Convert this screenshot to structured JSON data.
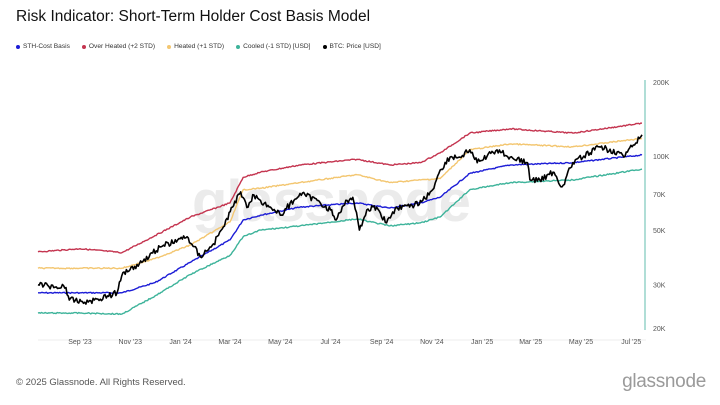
{
  "title": "Risk Indicator: Short-Term Holder Cost Basis Model",
  "footer": "© 2025 Glassnode. All Rights Reserved.",
  "logo": "glassnode",
  "watermark": "glassnode",
  "chart_data": {
    "type": "line",
    "title": "Risk Indicator: Short-Term Holder Cost Basis Model",
    "xlabel": "",
    "ylabel": "",
    "y_scale": "log",
    "ylim": [
      20000,
      200000
    ],
    "y_ticks": [
      {
        "value": 20000,
        "label": "20K"
      },
      {
        "value": 30000,
        "label": "30K"
      },
      {
        "value": 50000,
        "label": "50K"
      },
      {
        "value": 70000,
        "label": "70K"
      },
      {
        "value": 100000,
        "label": "100K"
      },
      {
        "value": 200000,
        "label": "200K"
      }
    ],
    "x_ticks": [
      {
        "date": "2023-09-01",
        "label": "Sep '23"
      },
      {
        "date": "2023-11-01",
        "label": "Nov '23"
      },
      {
        "date": "2024-01-01",
        "label": "Jan '24"
      },
      {
        "date": "2024-03-01",
        "label": "Mar '24"
      },
      {
        "date": "2024-05-01",
        "label": "May '24"
      },
      {
        "date": "2024-07-01",
        "label": "Jul '24"
      },
      {
        "date": "2024-09-01",
        "label": "Sep '24"
      },
      {
        "date": "2024-11-01",
        "label": "Nov '24"
      },
      {
        "date": "2025-01-01",
        "label": "Jan '25"
      },
      {
        "date": "2025-03-01",
        "label": "Mar '25"
      },
      {
        "date": "2025-05-01",
        "label": "May '25"
      },
      {
        "date": "2025-07-01",
        "label": "Jul '25"
      }
    ],
    "xlim": [
      "2023-07-12",
      "2025-07-14"
    ],
    "legend_position": "top-left",
    "grid": false,
    "band_dates": [
      "2023-07-12",
      "2023-09-01",
      "2023-10-22",
      "2023-12-01",
      "2024-01-13",
      "2024-03-01",
      "2024-03-17",
      "2024-04-07",
      "2024-05-25",
      "2024-08-02",
      "2024-09-11",
      "2024-10-18",
      "2024-11-11",
      "2024-12-17",
      "2025-02-04",
      "2025-04-21",
      "2025-07-14"
    ],
    "series": [
      {
        "name": "STH-Cost Basis",
        "color": "#1c1cd6",
        "values": [
          27800,
          27800,
          27800,
          30600,
          37000,
          45600,
          55000,
          57500,
          62000,
          64500,
          61500,
          64500,
          68000,
          85000,
          92000,
          94000,
          101000
        ]
      },
      {
        "name": "Over Heated (+2 STD)",
        "color": "#c4344f",
        "values": [
          40800,
          42000,
          40500,
          47500,
          56500,
          64500,
          82000,
          86000,
          92000,
          97000,
          92000,
          94000,
          103000,
          124000,
          129000,
          124000,
          136000
        ]
      },
      {
        "name": "Heated (+1 STD)",
        "color": "#f3c670",
        "values": [
          35000,
          35000,
          35000,
          38300,
          43500,
          54000,
          73000,
          74000,
          78000,
          84000,
          78000,
          80000,
          81000,
          106000,
          112000,
          109000,
          118000
        ]
      },
      {
        "name": "Cooled (-1 STD) [USD]",
        "color": "#3db39a",
        "values": [
          23000,
          23000,
          22800,
          27000,
          33000,
          39500,
          47000,
          50000,
          52000,
          55500,
          52000,
          53500,
          56500,
          73000,
          78000,
          80000,
          88500
        ]
      },
      {
        "name": "BTC: Price [USD]",
        "color": "#000000",
        "points": [
          [
            "2023-07-12",
            30000
          ],
          [
            "2023-08-15",
            29200
          ],
          [
            "2023-08-19",
            26000
          ],
          [
            "2023-09-11",
            25500
          ],
          [
            "2023-10-16",
            27800
          ],
          [
            "2023-10-23",
            33600
          ],
          [
            "2023-11-12",
            36500
          ],
          [
            "2023-12-07",
            42700
          ],
          [
            "2024-01-09",
            47000
          ],
          [
            "2024-01-25",
            39000
          ],
          [
            "2024-02-10",
            44000
          ],
          [
            "2024-02-22",
            51500
          ],
          [
            "2024-03-04",
            62000
          ],
          [
            "2024-03-14",
            71500
          ],
          [
            "2024-03-23",
            62000
          ],
          [
            "2024-03-30",
            69500
          ],
          [
            "2024-04-07",
            66000
          ],
          [
            "2024-04-19",
            62000
          ],
          [
            "2024-05-01",
            57500
          ],
          [
            "2024-05-25",
            70500
          ],
          [
            "2024-06-15",
            66000
          ],
          [
            "2024-07-01",
            60400
          ],
          [
            "2024-07-08",
            55000
          ],
          [
            "2024-07-21",
            66000
          ],
          [
            "2024-07-28",
            68000
          ],
          [
            "2024-08-03",
            55000
          ],
          [
            "2024-08-05",
            50000
          ],
          [
            "2024-08-14",
            60400
          ],
          [
            "2024-08-26",
            62000
          ],
          [
            "2024-09-07",
            53500
          ],
          [
            "2024-09-19",
            62000
          ],
          [
            "2024-10-05",
            62000
          ],
          [
            "2024-10-21",
            66000
          ],
          [
            "2024-11-02",
            73000
          ],
          [
            "2024-11-11",
            87700
          ],
          [
            "2024-11-23",
            99000
          ],
          [
            "2024-12-05",
            99000
          ],
          [
            "2024-12-17",
            106000
          ],
          [
            "2024-12-26",
            94000
          ],
          [
            "2025-01-19",
            106000
          ],
          [
            "2025-02-04",
            99000
          ],
          [
            "2025-02-25",
            94000
          ],
          [
            "2025-02-28",
            80000
          ],
          [
            "2025-03-12",
            80000
          ],
          [
            "2025-03-28",
            86000
          ],
          [
            "2025-04-08",
            75000
          ],
          [
            "2025-04-21",
            94000
          ],
          [
            "2025-05-12",
            103000
          ],
          [
            "2025-05-23",
            109000
          ],
          [
            "2025-06-17",
            103000
          ],
          [
            "2025-06-22",
            99000
          ],
          [
            "2025-07-02",
            109000
          ],
          [
            "2025-07-11",
            118000
          ],
          [
            "2025-07-14",
            122000
          ]
        ]
      }
    ]
  }
}
